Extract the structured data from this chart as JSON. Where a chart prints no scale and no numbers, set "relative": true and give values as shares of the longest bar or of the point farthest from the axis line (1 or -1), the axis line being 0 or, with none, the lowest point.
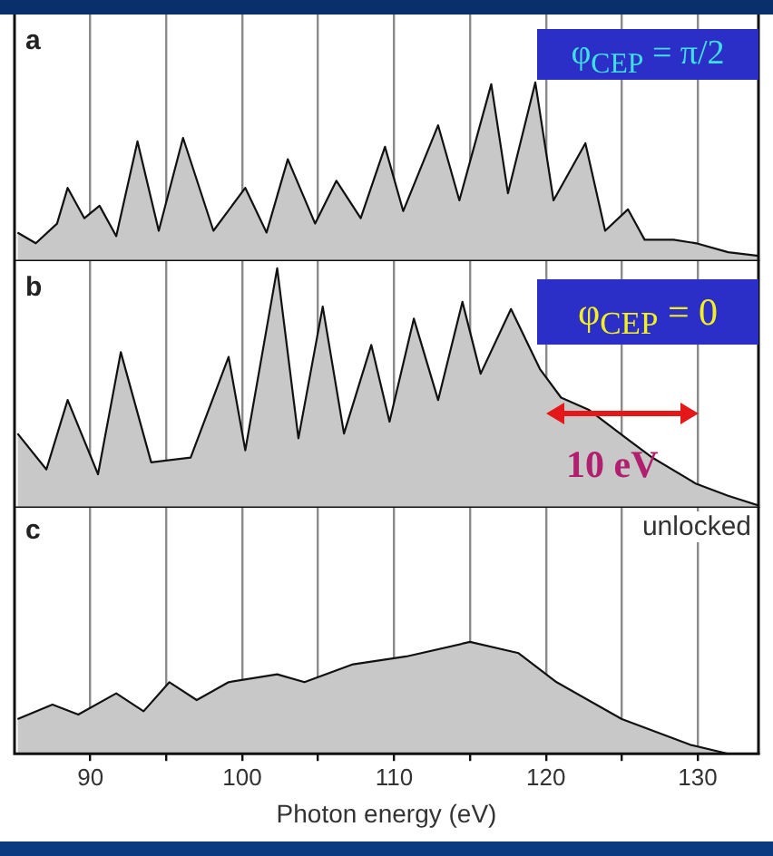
{
  "chart_data": [
    {
      "type": "area",
      "relative": true,
      "grid": "x",
      "tick_labels": false,
      "xlim": [
        85,
        134
      ],
      "xticks": [
        90,
        {
          "value": 95,
          "label": null
        },
        100,
        {
          "value": 105,
          "label": null
        },
        110,
        {
          "value": 115,
          "label": null
        },
        120,
        {
          "value": 125,
          "label": null
        },
        130
      ],
      "series": [
        {
          "color": "#c8c8c8",
          "x": [
            85.2,
            86.4,
            87.8,
            88.5,
            89.6,
            90.6,
            91.7,
            93.1,
            94.5,
            96.1,
            98.1,
            100.2,
            101.6,
            103.0,
            104.8,
            106.2,
            107.8,
            109.4,
            110.6,
            112.9,
            114.3,
            116.4,
            117.5,
            119.3,
            120.5,
            122.6,
            123.9,
            125.4,
            126.5,
            128.4,
            129.9,
            132.0,
            134.0
          ],
          "values": [
            0.16,
            0.1,
            0.21,
            0.41,
            0.24,
            0.31,
            0.14,
            0.67,
            0.17,
            0.69,
            0.17,
            0.41,
            0.16,
            0.57,
            0.21,
            0.45,
            0.24,
            0.64,
            0.28,
            0.76,
            0.34,
            0.99,
            0.38,
            1.0,
            0.34,
            0.66,
            0.17,
            0.29,
            0.12,
            0.12,
            0.1,
            0.05,
            0.03
          ]
        }
      ],
      "annotations": [
        "a",
        "φ$_{CEP}$ = π/2"
      ]
    },
    {
      "type": "area",
      "relative": true,
      "grid": "x",
      "tick_labels": false,
      "xlim": [
        85,
        134
      ],
      "xticks": [
        90,
        {
          "value": 95,
          "label": null
        },
        100,
        {
          "value": 105,
          "label": null
        },
        110,
        {
          "value": 115,
          "label": null
        },
        120,
        {
          "value": 125,
          "label": null
        },
        130
      ],
      "series": [
        {
          "color": "#c8c8c8",
          "x": [
            85.2,
            87.1,
            88.5,
            90.5,
            92.0,
            94.0,
            96.6,
            99.1,
            100.2,
            102.3,
            103.7,
            105.3,
            106.7,
            108.5,
            109.7,
            111.3,
            112.9,
            114.5,
            115.7,
            117.7,
            119.6,
            121.0,
            122.8,
            125.3,
            127.0,
            129.9,
            132.0,
            134.0
          ],
          "values": [
            0.31,
            0.16,
            0.45,
            0.14,
            0.65,
            0.19,
            0.21,
            0.63,
            0.24,
            1.0,
            0.29,
            0.84,
            0.31,
            0.68,
            0.36,
            0.79,
            0.45,
            0.86,
            0.56,
            0.83,
            0.58,
            0.46,
            0.41,
            0.29,
            0.21,
            0.1,
            0.05,
            0.01
          ]
        }
      ],
      "annotations": [
        "b",
        "φ$_{CEP}$ = 0",
        "10 eV"
      ]
    },
    {
      "type": "area",
      "relative": true,
      "grid": "x",
      "tick_labels": "x",
      "xlim": [
        85,
        134
      ],
      "xlabel": "Photon energy (eV)",
      "xticks": [
        90,
        {
          "value": 95,
          "label": null
        },
        100,
        {
          "value": 105,
          "label": null
        },
        110,
        {
          "value": 115,
          "label": null
        },
        120,
        {
          "value": 125,
          "label": null
        },
        130
      ],
      "series": [
        {
          "color": "#c8c8c8",
          "x": [
            85.2,
            87.5,
            89.2,
            91.7,
            93.5,
            95.2,
            97.0,
            99.1,
            102.3,
            104.1,
            107.3,
            110.8,
            115.0,
            118.2,
            120.7,
            125.0,
            129.5,
            132.0
          ],
          "values": [
            0.31,
            0.44,
            0.35,
            0.54,
            0.38,
            0.64,
            0.48,
            0.64,
            0.71,
            0.64,
            0.8,
            0.87,
            1.0,
            0.9,
            0.64,
            0.31,
            0.08,
            0
          ]
        }
      ],
      "annotations": [
        "c",
        "unlocked"
      ]
    }
  ]
}
